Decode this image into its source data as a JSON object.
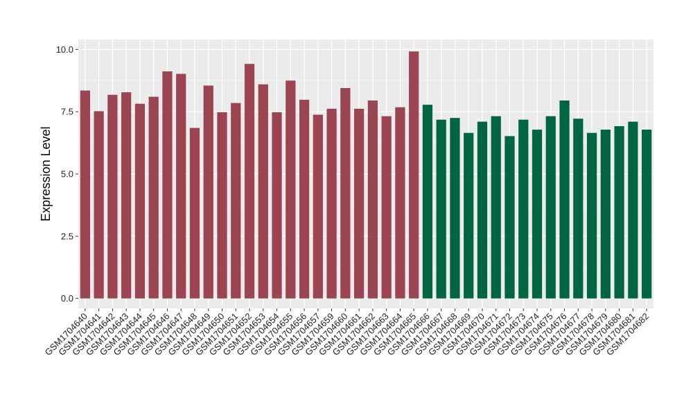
{
  "chart_data": {
    "type": "bar",
    "title": "",
    "xlabel": "",
    "ylabel": "Expression Level",
    "ylim": [
      -0.4,
      10.4
    ],
    "yticks": [
      0.0,
      2.5,
      5.0,
      7.5,
      10.0
    ],
    "ytick_labels": [
      "0.0",
      "2.5",
      "5.0",
      "7.5",
      "10.0"
    ],
    "grid": true,
    "legend": "none",
    "background": "#ebebeb",
    "categories": [
      "GSM1704640",
      "GSM1704641",
      "GSM1704642",
      "GSM1704643",
      "GSM1704644",
      "GSM1704645",
      "GSM1704646",
      "GSM1704647",
      "GSM1704648",
      "GSM1704649",
      "GSM1704650",
      "GSM1704651",
      "GSM1704652",
      "GSM1704653",
      "GSM1704654",
      "GSM1704655",
      "GSM1704656",
      "GSM1704657",
      "GSM1704659",
      "GSM1704660",
      "GSM1704661",
      "GSM1704662",
      "GSM1704663",
      "GSM1704664",
      "GSM1704665",
      "GSM1704666",
      "GSM1704667",
      "GSM1704668",
      "GSM1704669",
      "GSM1704670",
      "GSM1704671",
      "GSM1704672",
      "GSM1704673",
      "GSM1704674",
      "GSM1704675",
      "GSM1704676",
      "GSM1704677",
      "GSM1704678",
      "GSM1704679",
      "GSM1704680",
      "GSM1704681",
      "GSM1704682"
    ],
    "values": [
      8.35,
      7.52,
      8.18,
      8.28,
      7.82,
      8.1,
      9.12,
      9.02,
      6.85,
      8.55,
      7.48,
      7.85,
      9.42,
      8.6,
      7.48,
      8.75,
      7.98,
      7.38,
      7.62,
      8.45,
      7.62,
      7.95,
      7.32,
      7.68,
      9.92,
      7.78,
      7.18,
      7.25,
      6.65,
      7.1,
      7.32,
      6.52,
      7.18,
      6.78,
      7.32,
      7.95,
      7.22,
      6.65,
      6.78,
      6.92,
      7.1,
      6.78
    ],
    "groups": [
      "red",
      "red",
      "red",
      "red",
      "red",
      "red",
      "red",
      "red",
      "red",
      "red",
      "red",
      "red",
      "red",
      "red",
      "red",
      "red",
      "red",
      "red",
      "red",
      "red",
      "red",
      "red",
      "red",
      "red",
      "red",
      "green",
      "green",
      "green",
      "green",
      "green",
      "green",
      "green",
      "green",
      "green",
      "green",
      "green",
      "green",
      "green",
      "green",
      "green",
      "green",
      "green"
    ],
    "colors": {
      "red": "#9b4452",
      "green": "#006641"
    }
  }
}
